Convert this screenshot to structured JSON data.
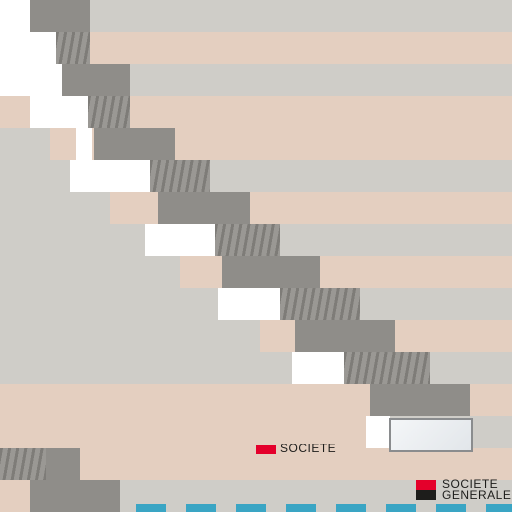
{
  "photo": {
    "subject": "glitched photograph of a building facade with repeated horizontal bands",
    "palette": {
      "beige": "#e4cfc0",
      "light_grey": "#cfcdc8",
      "dark_grey": "#8f8d89",
      "white": "#ffffff",
      "red": "#e4002b",
      "black": "#1d1d1b",
      "cyan": "#3aa5c4"
    }
  },
  "signage": {
    "brand_line1": "SOCIETE",
    "brand_line2": "GENERALE",
    "ghost_text": "SOCIETE"
  }
}
